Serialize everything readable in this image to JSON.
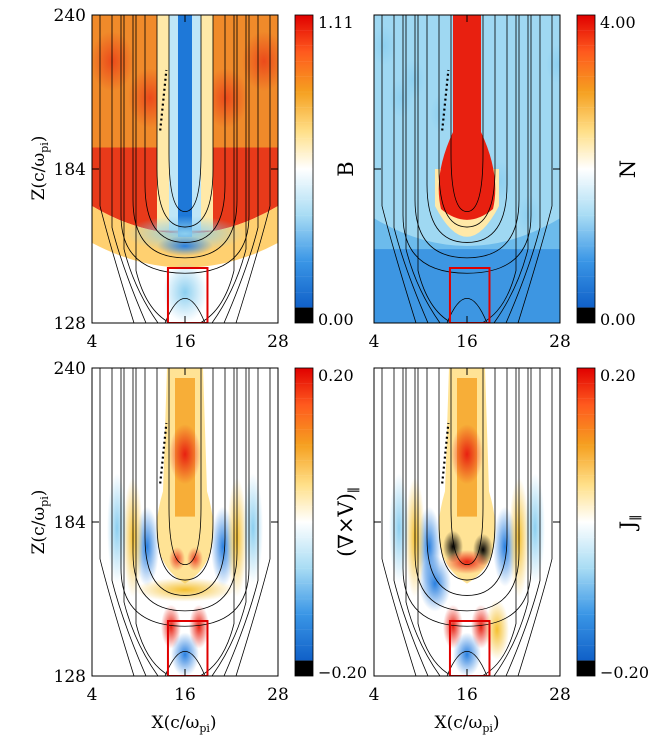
{
  "figure": {
    "xlabel_main": "X(c/ω",
    "xlabel_sub": "pi",
    "xlabel_close": ")",
    "ylabel_main": "Z(c/ω",
    "ylabel_sub": "pi",
    "ylabel_close": ")"
  },
  "chart_data": [
    {
      "type": "heatmap",
      "panel": "top-left",
      "quantity": "B",
      "xlim": [
        4,
        28
      ],
      "ylim": [
        128,
        240
      ],
      "xticks": [
        "4",
        "16",
        "28"
      ],
      "yticks": [
        "128",
        "184",
        "240"
      ],
      "colorbar": {
        "label": "B",
        "min": "0.00",
        "max": "1.11"
      },
      "colormap": "blue-white-red",
      "box": {
        "x": [
          13.8,
          18.9
        ],
        "z": [
          128,
          148
        ]
      },
      "dotted_line": {
        "x": [
          12.8,
          13.6
        ],
        "z": [
          198,
          220
        ]
      }
    },
    {
      "type": "heatmap",
      "panel": "top-right",
      "quantity": "N",
      "xlim": [
        4,
        28
      ],
      "ylim": [
        128,
        240
      ],
      "xticks": [
        "4",
        "16",
        "28"
      ],
      "yticks": [
        "128",
        "184",
        "240"
      ],
      "colorbar": {
        "label": "N",
        "min": "0.00",
        "max": "4.00"
      },
      "colormap": "blue-white-red",
      "box": {
        "x": [
          13.8,
          18.9
        ],
        "z": [
          128,
          148
        ]
      },
      "dotted_line": {
        "x": [
          12.8,
          13.6
        ],
        "z": [
          198,
          220
        ]
      }
    },
    {
      "type": "heatmap",
      "panel": "bottom-left",
      "quantity": "(∇×V)∥",
      "xlim": [
        4,
        28
      ],
      "ylim": [
        128,
        240
      ],
      "xticks": [
        "4",
        "16",
        "28"
      ],
      "yticks": [
        "128",
        "184",
        "240"
      ],
      "colorbar": {
        "label": "(∇×V)",
        "label_sub": "∥",
        "min": "−0.20",
        "max": "0.20"
      },
      "colormap": "blue-white-red",
      "box": {
        "x": [
          13.8,
          18.9
        ],
        "z": [
          128,
          148
        ]
      },
      "dotted_line": {
        "x": [
          12.8,
          13.6
        ],
        "z": [
          198,
          220
        ]
      }
    },
    {
      "type": "heatmap",
      "panel": "bottom-right",
      "quantity": "J∥",
      "xlim": [
        4,
        28
      ],
      "ylim": [
        128,
        240
      ],
      "xticks": [
        "4",
        "16",
        "28"
      ],
      "yticks": [
        "128",
        "184",
        "240"
      ],
      "colorbar": {
        "label": "J",
        "label_sub": "∥",
        "min": "−0.20",
        "max": "0.20"
      },
      "colormap": "blue-white-red",
      "box": {
        "x": [
          13.8,
          18.9
        ],
        "z": [
          128,
          148
        ]
      },
      "dotted_line": {
        "x": [
          12.8,
          13.6
        ],
        "z": [
          198,
          220
        ]
      }
    }
  ]
}
